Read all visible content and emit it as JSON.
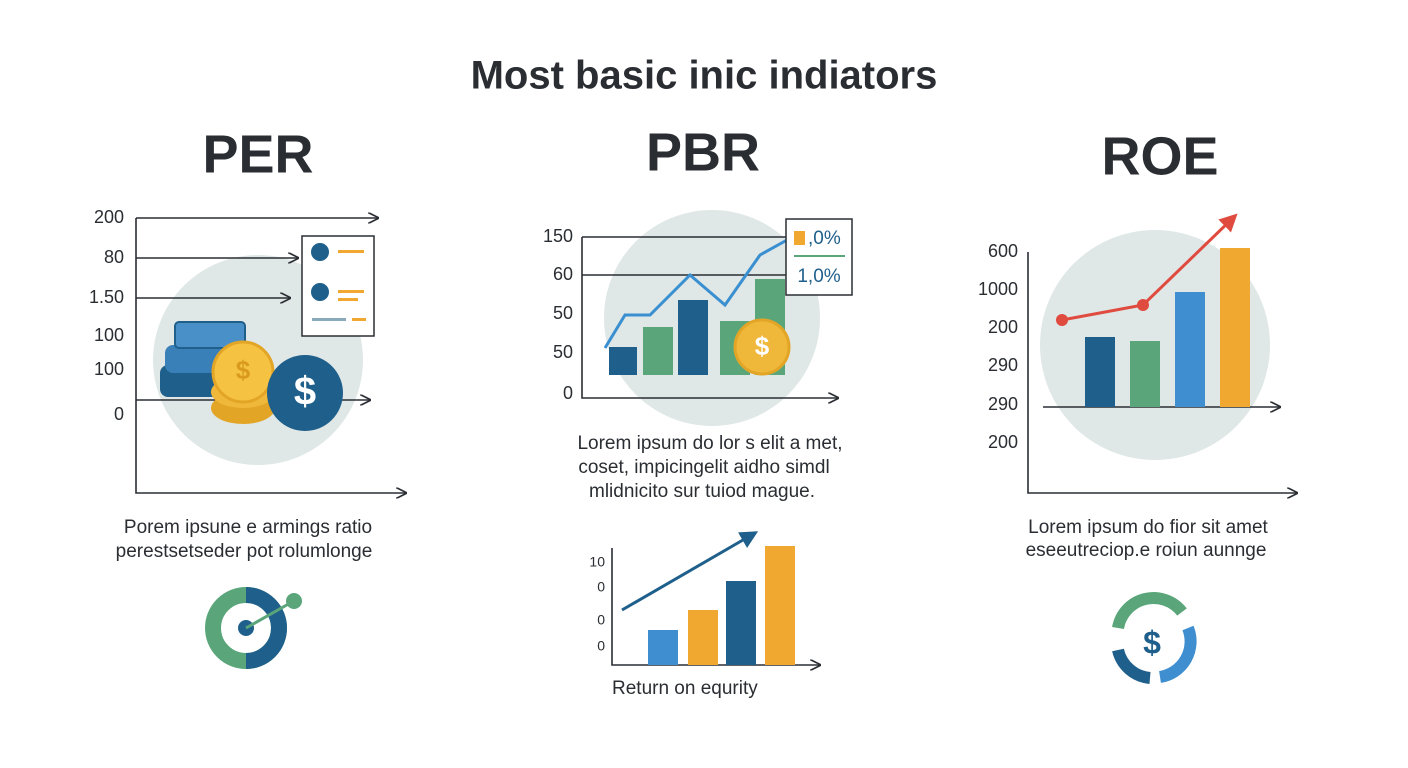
{
  "title": "Most basic inic indiators",
  "panels": [
    {
      "heading": "PER",
      "axis_labels": [
        "200",
        "80",
        "1.50",
        "100",
        "100",
        "0"
      ],
      "caption": [
        "Porem ipsune e armings ratio",
        "perestsetseder pot rolumlonge"
      ]
    },
    {
      "heading": "PBR",
      "axis_labels": [
        "150",
        "60",
        "50",
        "50",
        "0"
      ],
      "badges": [
        ",0%",
        "1,0%"
      ],
      "caption": [
        "Lorem ipsum do lor s elit a met,",
        "coset, impicingelit aidho simdl",
        "mlidnicito sur tuiod mague."
      ],
      "sub_axis_labels": [
        "10",
        "0",
        "0",
        "0"
      ],
      "sub_caption": "Return on equrity"
    },
    {
      "heading": "ROE",
      "axis_labels": [
        "600",
        "1000",
        "200",
        "290",
        "290",
        "200"
      ],
      "caption": [
        "Lorem ipsum do fior sit amet",
        "eseeutreciop.e roiun aunnge"
      ]
    }
  ]
}
